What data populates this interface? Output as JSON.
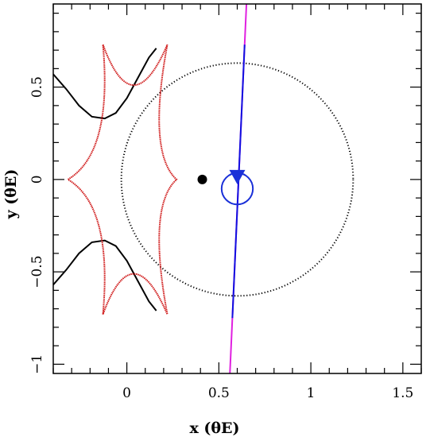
{
  "chart_data": {
    "type": "scatter",
    "xlabel": "x (θE)",
    "ylabel": "y (θE)",
    "xlim": [
      -0.4,
      1.6
    ],
    "ylim": [
      -1.05,
      0.95
    ],
    "x_ticks": [
      {
        "value": 0,
        "label": "0"
      },
      {
        "value": 0.5,
        "label": "0.5"
      },
      {
        "value": 1,
        "label": "1"
      },
      {
        "value": 1.5,
        "label": "1.5"
      }
    ],
    "y_ticks": [
      {
        "value": -1,
        "label": "−1"
      },
      {
        "value": -0.5,
        "label": "−0.5"
      },
      {
        "value": 0,
        "label": "0"
      },
      {
        "value": 0.5,
        "label": "0.5"
      }
    ],
    "colors": {
      "caustic": "#d01c1c",
      "critical_curve": "#000000",
      "trajectory_far": "#e020e0",
      "trajectory_near": "#1010e0",
      "source": "#1a30d8",
      "lens": "#000000"
    },
    "caustic": {
      "cusps": [
        [
          -0.13,
          0.73
        ],
        [
          0.22,
          0.73
        ],
        [
          0.27,
          0.0
        ],
        [
          0.22,
          -0.73
        ],
        [
          -0.13,
          -0.73
        ],
        [
          -0.32,
          0.0
        ]
      ]
    },
    "critical_curve_outer_circle": {
      "center": [
        0.6,
        0.0
      ],
      "radius": 0.63
    },
    "critical_curve_lobes": [
      {
        "x": [
          -0.4,
          -0.33,
          -0.26,
          -0.19,
          -0.12,
          -0.06,
          0.0,
          0.06,
          0.12,
          0.16
        ],
        "y": [
          0.57,
          0.49,
          0.4,
          0.34,
          0.33,
          0.36,
          0.44,
          0.55,
          0.66,
          0.71
        ]
      },
      {
        "x": [
          -0.4,
          -0.33,
          -0.26,
          -0.19,
          -0.12,
          -0.06,
          0.0,
          0.06,
          0.12,
          0.16
        ],
        "y": [
          -0.57,
          -0.49,
          -0.4,
          -0.34,
          -0.33,
          -0.36,
          -0.44,
          -0.55,
          -0.66,
          -0.71
        ]
      }
    ],
    "lens_position": [
      0.41,
      0.0
    ],
    "source": {
      "center": [
        0.6,
        -0.05
      ],
      "radius": 0.085
    },
    "trajectory": {
      "start": [
        0.56,
        -1.05
      ],
      "end": [
        0.65,
        0.95
      ],
      "near_segment_y": [
        -0.75,
        0.73
      ]
    },
    "direction_marker": [
      0.6,
      0.0
    ]
  }
}
